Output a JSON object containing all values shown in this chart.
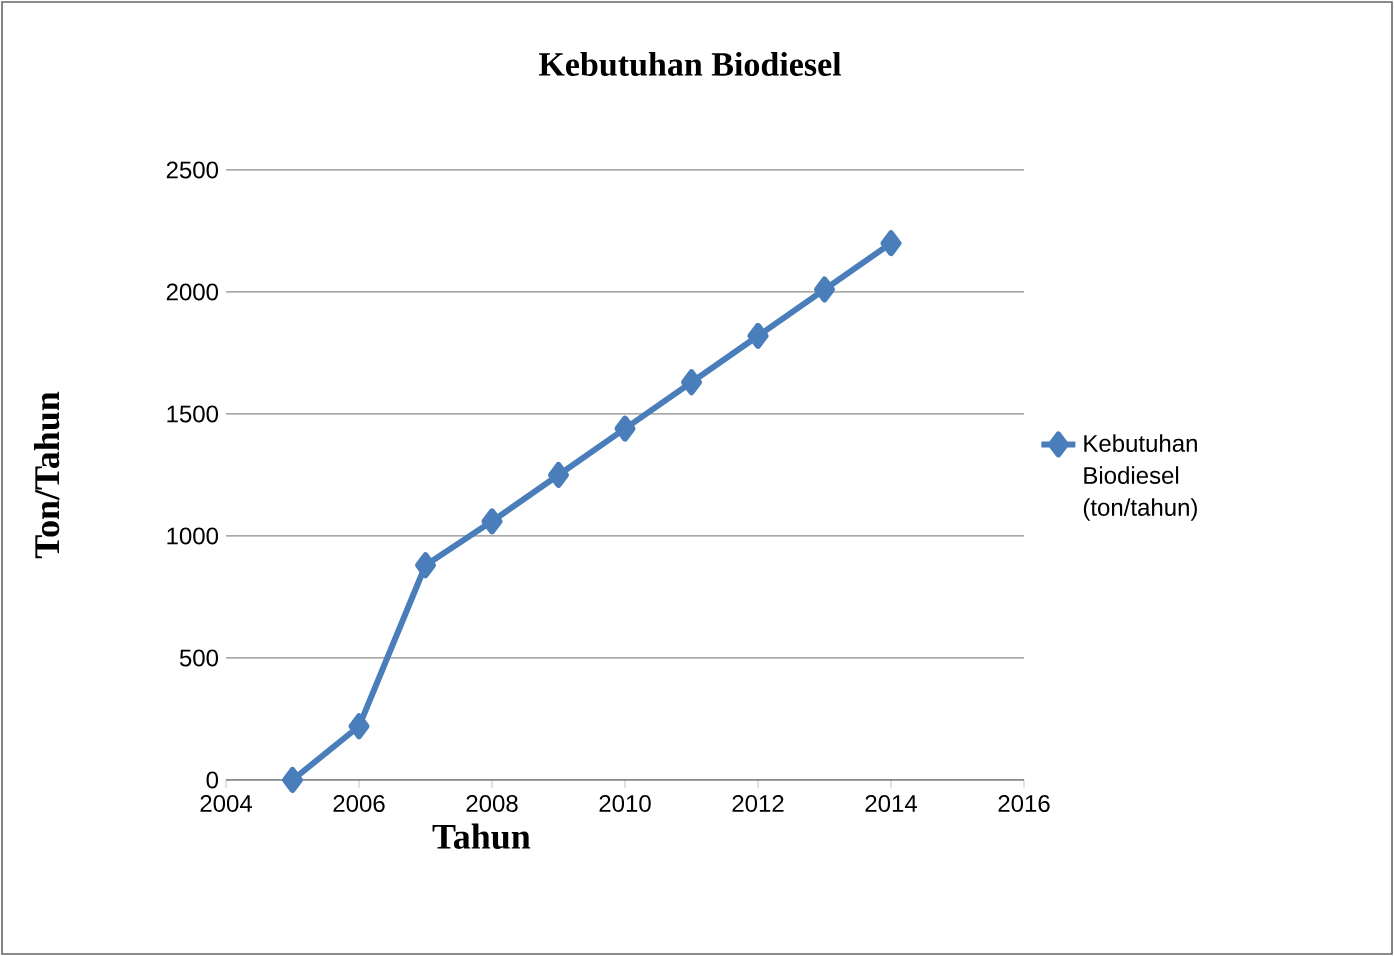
{
  "chart_data": {
    "type": "line",
    "title": "Kebutuhan Biodiesel",
    "xlabel": "Tahun",
    "ylabel": "Ton/Tahun",
    "x": [
      2005,
      2006,
      2007,
      2008,
      2009,
      2010,
      2011,
      2012,
      2013,
      2014
    ],
    "series": [
      {
        "name": "Kebutuhan Biodiesel (ton/tahun)",
        "color": "#4a7ebb",
        "values": [
          0,
          220,
          880,
          1060,
          1250,
          1440,
          1630,
          1820,
          2010,
          2200
        ]
      }
    ],
    "xlim": [
      2004,
      2016
    ],
    "xticks": [
      2004,
      2006,
      2008,
      2010,
      2012,
      2014,
      2016
    ],
    "ylim": [
      0,
      2500
    ],
    "yticks": [
      0,
      500,
      1000,
      1500,
      2000,
      2500
    ],
    "grid": "y",
    "legend": "right",
    "marker": "diamond",
    "line_style": "solid"
  }
}
